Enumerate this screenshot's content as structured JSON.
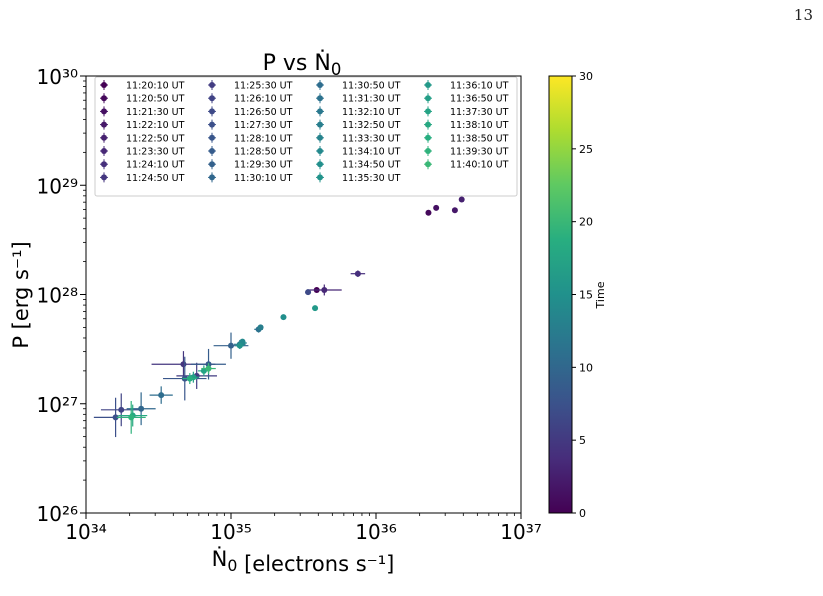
{
  "page": {
    "number": "13"
  },
  "chart_data": {
    "type": "scatter",
    "title": "P vs Ṅ₀",
    "xlabel": "Ṅ₀ [electrons s⁻¹]",
    "ylabel": "P [erg s⁻¹]",
    "x_scale": "log",
    "y_scale": "log",
    "xlim": [
      1e+34,
      1e+37
    ],
    "ylim": [
      1e+26,
      1e+30
    ],
    "x_ticks": [
      {
        "value": 1e+34,
        "label": "10³⁴"
      },
      {
        "value": 1e+35,
        "label": "10³⁵"
      },
      {
        "value": 1e+36,
        "label": "10³⁶"
      },
      {
        "value": 1e+37,
        "label": "10³⁷"
      }
    ],
    "y_ticks": [
      {
        "value": 1e+26,
        "label": "10²⁶"
      },
      {
        "value": 1e+27,
        "label": "10²⁷"
      },
      {
        "value": 1e+28,
        "label": "10²⁸"
      },
      {
        "value": 1e+29,
        "label": "10²⁹"
      },
      {
        "value": 1e+30,
        "label": "10³⁰"
      }
    ],
    "legend_position": "top-left",
    "colorbar": {
      "label": "Time",
      "range": [
        0,
        30
      ],
      "ticks": [
        "0",
        "5",
        "10",
        "15",
        "20",
        "25",
        "30"
      ],
      "colormap": "viridis"
    },
    "series": [
      {
        "name": "11:20:10 UT",
        "t": 0.0,
        "x": 3.9e+35,
        "y": 1.1e+28
      },
      {
        "name": "11:20:50 UT",
        "t": 0.7,
        "x": 2.3e+36,
        "y": 5.6e+28
      },
      {
        "name": "11:21:30 UT",
        "t": 1.3,
        "x": 2.6e+36,
        "y": 6.2e+28
      },
      {
        "name": "11:22:10 UT",
        "t": 2.0,
        "x": 3.5e+36,
        "y": 5.9e+28
      },
      {
        "name": "11:22:50 UT",
        "t": 2.7,
        "x": 3.9e+36,
        "y": 7.4e+28
      },
      {
        "name": "11:23:30 UT",
        "t": 3.3,
        "x": 4.4e+35,
        "y": 1.1e+28,
        "xerr": 0.12,
        "yerr": 0.05
      },
      {
        "name": "11:24:10 UT",
        "t": 4.0,
        "x": 7.5e+35,
        "y": 1.55e+28,
        "xerr": 0.05,
        "yerr": 0.03
      },
      {
        "name": "11:24:50 UT",
        "t": 4.7,
        "x": 4.7e+34,
        "y": 2.3e+27,
        "xerr": 0.22,
        "yerr": 0.12
      },
      {
        "name": "11:25:30 UT",
        "t": 5.3,
        "x": 5.8e+34,
        "y": 1.8e+27,
        "xerr": 0.14,
        "yerr": 0.12
      },
      {
        "name": "11:26:10 UT",
        "t": 6.0,
        "x": 1.75e+34,
        "y": 8.8e+26,
        "xerr": 0.14,
        "yerr": 0.15
      },
      {
        "name": "11:26:50 UT",
        "t": 6.7,
        "x": 3.4e+35,
        "y": 1.05e+28,
        "xerr": 0.02,
        "yerr": 0.02
      },
      {
        "name": "11:27:30 UT",
        "t": 7.3,
        "x": 1.6e+34,
        "y": 7.5e+26,
        "xerr": 0.15,
        "yerr": 0.18
      },
      {
        "name": "11:28:10 UT",
        "t": 8.0,
        "x": 4.8e+34,
        "y": 1.7e+27,
        "xerr": 0.15,
        "yerr": 0.2
      },
      {
        "name": "11:28:50 UT",
        "t": 8.7,
        "x": 7e+34,
        "y": 2.3e+27,
        "xerr": 0.12,
        "yerr": 0.14
      },
      {
        "name": "11:29:30 UT",
        "t": 9.3,
        "x": 1e+35,
        "y": 3.4e+27,
        "xerr": 0.12,
        "yerr": 0.12
      },
      {
        "name": "11:30:10 UT",
        "t": 10.0,
        "x": 2.4e+34,
        "y": 9e+26,
        "xerr": 0.1,
        "yerr": 0.15
      },
      {
        "name": "11:30:50 UT",
        "t": 10.7,
        "x": 3.3e+34,
        "y": 1.2e+27,
        "xerr": 0.08,
        "yerr": 0.08
      },
      {
        "name": "11:31:30 UT",
        "t": 11.3,
        "x": 1.55e+35,
        "y": 4.8e+27,
        "xerr": 0.03,
        "yerr": 0.03
      },
      {
        "name": "11:32:10 UT",
        "t": 12.0,
        "x": 1.15e+35,
        "y": 3.5e+27,
        "xerr": 0.04,
        "yerr": 0.04
      },
      {
        "name": "11:32:50 UT",
        "t": 12.7,
        "x": 1.6e+35,
        "y": 5e+27,
        "xerr": 0.02,
        "yerr": 0.02
      },
      {
        "name": "11:33:30 UT",
        "t": 13.3,
        "x": 1.2e+35,
        "y": 3.6e+27,
        "xerr": 0.03,
        "yerr": 0.03
      },
      {
        "name": "11:34:10 UT",
        "t": 14.0,
        "x": 1.2e+35,
        "y": 3.7e+27,
        "xerr": 0.02,
        "yerr": 0.02
      },
      {
        "name": "11:34:50 UT",
        "t": 14.7,
        "x": 2.3e+35,
        "y": 6.2e+27,
        "xerr": 0.02,
        "yerr": 0.02
      },
      {
        "name": "11:35:30 UT",
        "t": 15.3,
        "x": 1.15e+35,
        "y": 3.4e+27,
        "xerr": 0.03,
        "yerr": 0.03
      },
      {
        "name": "11:36:10 UT",
        "t": 16.0,
        "x": 3.8e+35,
        "y": 7.5e+27,
        "xerr": 0.02,
        "yerr": 0.02
      },
      {
        "name": "11:36:50 UT",
        "t": 16.7,
        "x": 5.5e+34,
        "y": 1.75e+27,
        "xerr": 0.04,
        "yerr": 0.05
      },
      {
        "name": "11:37:30 UT",
        "t": 17.3,
        "x": 6.5e+34,
        "y": 2e+27,
        "xerr": 0.04,
        "yerr": 0.05
      },
      {
        "name": "11:38:10 UT",
        "t": 18.0,
        "x": 2.1e+34,
        "y": 7.8e+26,
        "xerr": 0.1,
        "yerr": 0.1
      },
      {
        "name": "11:38:50 UT",
        "t": 18.7,
        "x": 5.2e+34,
        "y": 1.7e+27,
        "xerr": 0.05,
        "yerr": 0.05
      },
      {
        "name": "11:39:30 UT",
        "t": 19.3,
        "x": 2.05e+34,
        "y": 7.5e+26,
        "xerr": 0.1,
        "yerr": 0.15
      },
      {
        "name": "11:40:10 UT",
        "t": 20.0,
        "x": 7e+34,
        "y": 2.1e+27,
        "xerr": 0.05,
        "yerr": 0.05
      }
    ]
  }
}
